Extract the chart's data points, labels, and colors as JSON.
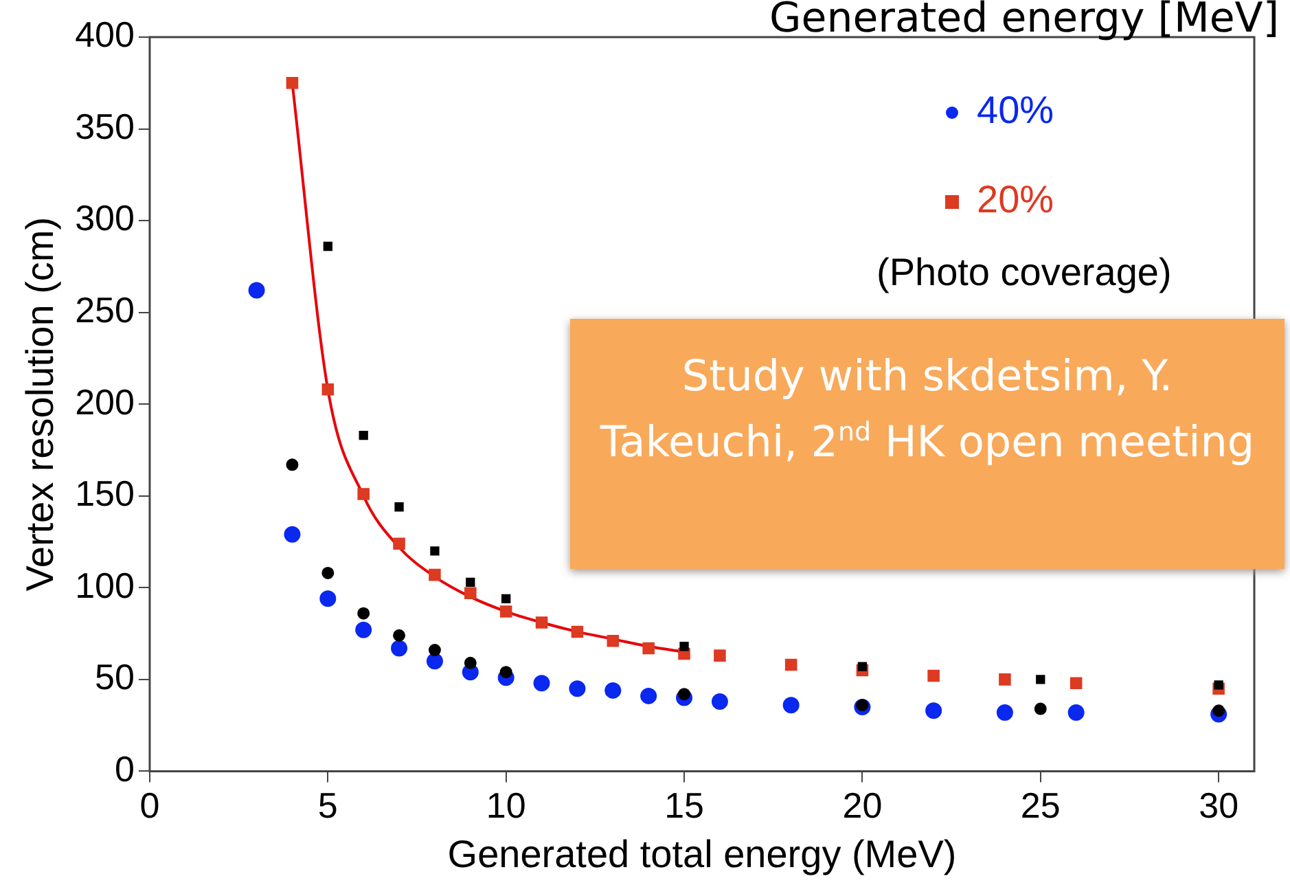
{
  "chart_data": {
    "type": "scatter",
    "title": "Generated energy [MeV]",
    "xlabel": "Generated total energy (MeV)",
    "ylabel": "Vertex resolution (cm)",
    "legend_title": "(Photo coverage)",
    "legend": "top right",
    "grid": false,
    "xlim": [
      0,
      31
    ],
    "xticks": [
      0,
      5,
      10,
      15,
      20,
      25,
      30
    ],
    "ylim": [
      0,
      400
    ],
    "yticks": [
      0,
      50,
      100,
      150,
      200,
      250,
      300,
      350,
      400
    ],
    "annotations": [
      "Study with skdetsim, Y. Takeuchi, 2$^{nd}$ HK open meeting"
    ],
    "series": [
      {
        "name": "40%",
        "color": "#0a28f0",
        "marker": "circle",
        "x": [
          3,
          4,
          5,
          6,
          7,
          8,
          9,
          10,
          11,
          12,
          13,
          14,
          15,
          16,
          18,
          20,
          22,
          24,
          26,
          30
        ],
        "values": [
          262,
          129,
          94,
          77,
          67,
          60,
          54,
          51,
          48,
          45,
          44,
          41,
          40,
          38,
          36,
          35,
          33,
          32,
          32,
          31
        ]
      },
      {
        "name": "20%",
        "color": "#dd3a22",
        "marker": "square",
        "x": [
          4,
          5,
          6,
          7,
          8,
          9,
          10,
          11,
          12,
          13,
          14,
          15,
          16,
          18,
          20,
          22,
          24,
          26,
          30
        ],
        "values": [
          375,
          208,
          151,
          124,
          107,
          97,
          87,
          81,
          76,
          71,
          67,
          64,
          63,
          58,
          55,
          52,
          50,
          48,
          45
        ]
      },
      {
        "color": "#000000",
        "marker": "square",
        "x": [
          5,
          6,
          7,
          8,
          9,
          10,
          15,
          20,
          25,
          30
        ],
        "values": [
          286,
          183,
          144,
          120,
          103,
          94,
          68,
          57,
          50,
          47
        ]
      },
      {
        "color": "#000000",
        "marker": "circle",
        "x": [
          4,
          5,
          6,
          7,
          8,
          9,
          10,
          15,
          20,
          25,
          30
        ],
        "values": [
          167,
          108,
          86,
          74,
          66,
          59,
          54,
          42,
          36,
          34,
          33
        ]
      },
      {
        "type": "line",
        "color": "#e8000a",
        "marker": "none",
        "x": [
          4,
          5,
          6,
          7,
          8,
          9,
          10,
          11,
          12,
          13,
          14,
          15
        ],
        "values": [
          375,
          208,
          150,
          122,
          106,
          95,
          87,
          81,
          76,
          72,
          68,
          65
        ]
      }
    ]
  }
}
